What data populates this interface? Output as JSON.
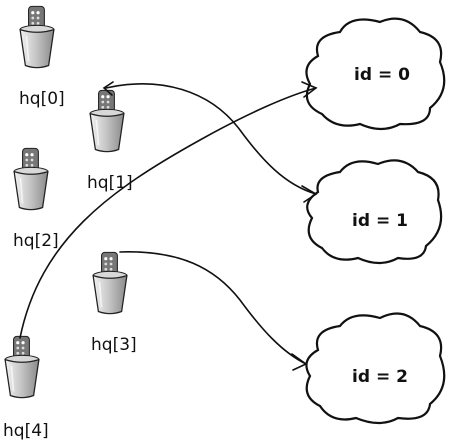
{
  "holders": [
    {
      "label": "hq[0]"
    },
    {
      "label": "hq[1]"
    },
    {
      "label": "hq[2]"
    },
    {
      "label": "hq[3]"
    },
    {
      "label": "hq[4]"
    }
  ],
  "clouds": [
    {
      "label": "id = 0"
    },
    {
      "label": "id = 1"
    },
    {
      "label": "id = 2"
    }
  ],
  "links": [
    {
      "from": "hq[1]",
      "to": "id = 1"
    },
    {
      "from": "hq[4]",
      "to": "id = 0"
    },
    {
      "from": "hq[3]",
      "to": "id = 2"
    }
  ],
  "colors": {
    "stroke": "#111111",
    "cup_light": "#e6e6e6",
    "cup_dark": "#9a9a9a",
    "remote": "#6e6e6e"
  }
}
